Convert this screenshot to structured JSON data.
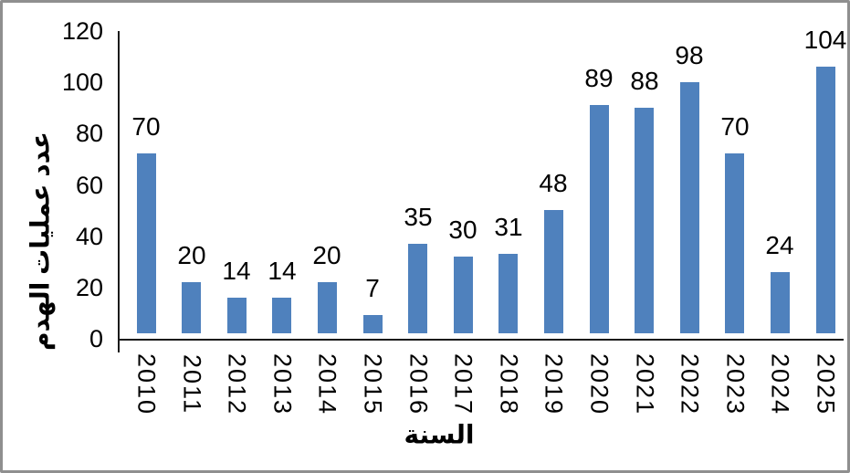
{
  "frame": {
    "background": "#ffffff",
    "border_color": "#8f8f8f"
  },
  "chart_data": {
    "type": "bar",
    "title": "",
    "categories": [
      "2010",
      "2011",
      "2012",
      "2013",
      "2014",
      "2015",
      "2016",
      "2017",
      "2018",
      "2019",
      "2020",
      "2021",
      "2022",
      "2023",
      "2024",
      "2025"
    ],
    "values": [
      70,
      20,
      14,
      14,
      20,
      7,
      35,
      30,
      31,
      48,
      89,
      88,
      98,
      70,
      24,
      104
    ],
    "xlabel": "السنة",
    "ylabel": "عدد عمليات الهدم",
    "ylim": [
      0,
      120
    ],
    "yticks": [
      0,
      20,
      40,
      60,
      80,
      100,
      120
    ],
    "bar_color": "#4F81BD",
    "axis_color": "#1a1a1a",
    "text_color": "#000000",
    "grid": false,
    "legend": false,
    "data_labels_shown": true,
    "category_label_rotation_deg": 90,
    "ylabel_rotation_deg": -90
  }
}
